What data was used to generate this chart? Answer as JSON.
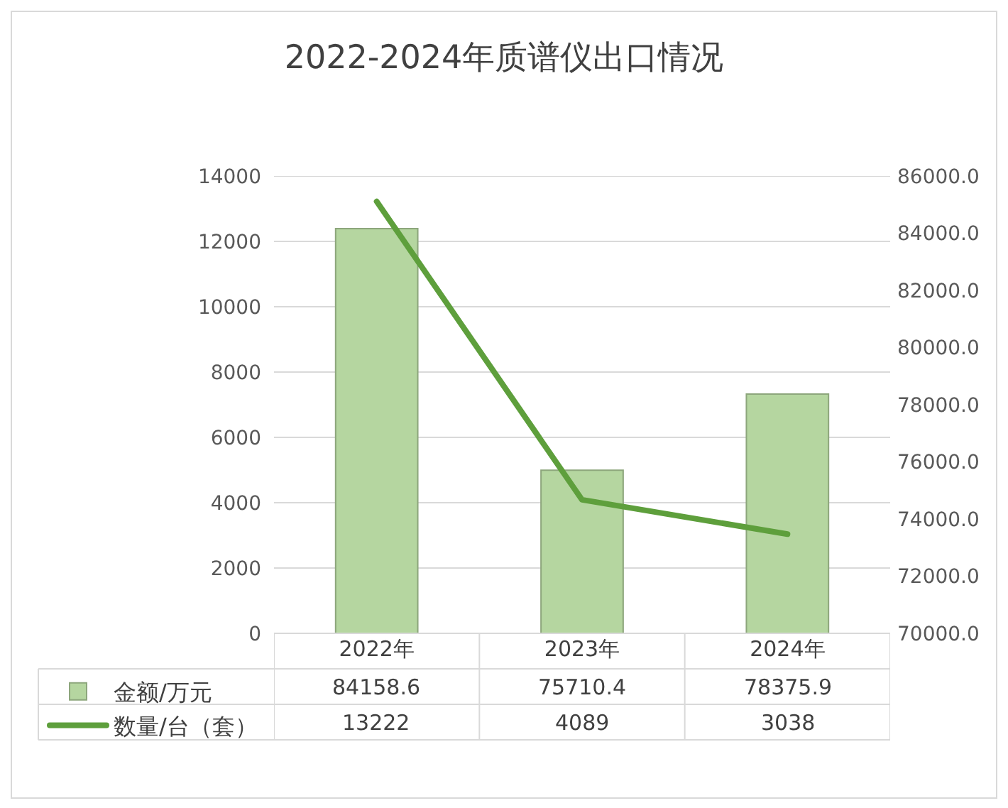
{
  "chart_data": {
    "type": "bar",
    "title": "2022-2024年质谱仪出口情况",
    "categories": [
      "2022年",
      "2023年",
      "2024年"
    ],
    "series": [
      {
        "name": "金额/万元",
        "axis": "y2",
        "color": "#b5d6a0",
        "values": [
          84158.6,
          75710.4,
          78375.9
        ]
      },
      {
        "name": "数量/台（套）",
        "type": "line",
        "color": "#5e9f3c",
        "values": [
          13222,
          4089,
          3038
        ]
      }
    ],
    "ylim": [
      0,
      14000
    ],
    "yticks": [
      0,
      2000,
      4000,
      6000,
      8000,
      10000,
      12000,
      14000
    ],
    "y2lim": [
      70000,
      86000
    ],
    "y2ticks": [
      {
        "value": 70000,
        "label": "70000.0"
      },
      {
        "value": 72000,
        "label": "72000.0"
      },
      {
        "value": 74000,
        "label": "74000.0"
      },
      {
        "value": 76000,
        "label": "76000.0"
      },
      {
        "value": 78000,
        "label": "78000.0"
      },
      {
        "value": 80000,
        "label": "80000.0"
      },
      {
        "value": 82000,
        "label": "82000.0"
      },
      {
        "value": 84000,
        "label": "84000.0"
      },
      {
        "value": 86000,
        "label": "86000.0"
      }
    ],
    "grid": "y",
    "legend": "bottom left",
    "data_labels": true,
    "marker": "none",
    "line_style": "solid"
  }
}
